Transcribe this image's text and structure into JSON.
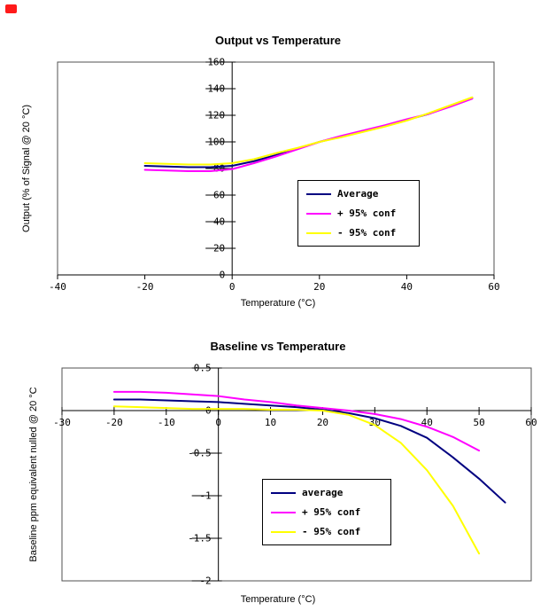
{
  "page": {
    "background": "#ffffff"
  },
  "red_marker": {
    "fill": "#ff1a1a",
    "border": "#b00000"
  },
  "chart_data": [
    {
      "type": "line",
      "title": "Output vs Temperature",
      "xlabel": "Temperature (°C)",
      "ylabel": "Output (% of Signal @ 20 °C)",
      "xlim": [
        -40,
        60
      ],
      "ylim": [
        0,
        160
      ],
      "xticks": [
        -40,
        -20,
        0,
        20,
        40,
        60
      ],
      "yticks": [
        160,
        140,
        120,
        100,
        80,
        60,
        40,
        20,
        0
      ],
      "grid": false,
      "legend_position": "middle-right",
      "series": [
        {
          "name": "Average",
          "color": "#000080",
          "x": [
            -20,
            -15,
            -10,
            -5,
            0,
            5,
            10,
            15,
            20,
            25,
            30,
            35,
            40,
            45,
            50,
            55
          ],
          "values": [
            82,
            81.5,
            81,
            81,
            82,
            85.5,
            90,
            95,
            100,
            104,
            108,
            112,
            116.5,
            121,
            127,
            133
          ]
        },
        {
          "name": "+ 95% conf",
          "color": "#ff00ff",
          "x": [
            -20,
            -15,
            -10,
            -5,
            0,
            5,
            10,
            15,
            20,
            25,
            30,
            35,
            40,
            45,
            50,
            55
          ],
          "values": [
            79,
            78.5,
            78,
            78,
            79.5,
            84,
            89,
            94.5,
            100,
            104.5,
            108.5,
            112.5,
            117,
            121,
            126.5,
            132.5
          ]
        },
        {
          "name": "- 95% conf",
          "color": "#ffff00",
          "x": [
            -20,
            -15,
            -10,
            -5,
            0,
            5,
            10,
            15,
            20,
            25,
            30,
            35,
            40,
            45,
            50,
            55
          ],
          "values": [
            84,
            83.5,
            83,
            83,
            84,
            87,
            91.5,
            95.5,
            100,
            103.5,
            107.5,
            111.5,
            116,
            121.5,
            127.5,
            133.5
          ]
        }
      ]
    },
    {
      "type": "line",
      "title": "Baseline vs Temperature",
      "xlabel": "Temperature (°C)",
      "ylabel": "Baseline ppm equivalent nulled @ 20 °C",
      "xlim": [
        -30,
        60
      ],
      "ylim": [
        -2,
        0.5
      ],
      "xticks": [
        -30,
        -20,
        -10,
        0,
        10,
        20,
        30,
        40,
        50,
        60
      ],
      "yticks": [
        0.5,
        0,
        -0.5,
        -1,
        -1.5,
        -2
      ],
      "grid": false,
      "legend_position": "lower-middle",
      "series": [
        {
          "name": "average",
          "color": "#000080",
          "x": [
            -20,
            -15,
            -10,
            -5,
            0,
            5,
            10,
            15,
            20,
            25,
            30,
            35,
            40,
            45,
            50,
            55
          ],
          "values": [
            0.13,
            0.13,
            0.12,
            0.11,
            0.1,
            0.08,
            0.06,
            0.04,
            0.01,
            -0.03,
            -0.09,
            -0.18,
            -0.32,
            -0.55,
            -0.8,
            -1.08
          ]
        },
        {
          "name": "+ 95% conf",
          "color": "#ff00ff",
          "x": [
            -20,
            -15,
            -10,
            -5,
            0,
            5,
            10,
            15,
            20,
            25,
            30,
            35,
            40,
            45,
            50
          ],
          "values": [
            0.22,
            0.22,
            0.21,
            0.19,
            0.17,
            0.13,
            0.1,
            0.06,
            0.03,
            0.0,
            -0.04,
            -0.1,
            -0.19,
            -0.31,
            -0.47
          ]
        },
        {
          "name": "- 95% conf",
          "color": "#ffff00",
          "x": [
            -20,
            -15,
            -10,
            -5,
            0,
            5,
            10,
            15,
            20,
            25,
            30,
            35,
            40,
            45,
            50
          ],
          "values": [
            0.05,
            0.04,
            0.03,
            0.02,
            0.02,
            0.02,
            0.01,
            0.01,
            0.0,
            -0.05,
            -0.17,
            -0.38,
            -0.7,
            -1.12,
            -1.68
          ]
        }
      ]
    }
  ]
}
